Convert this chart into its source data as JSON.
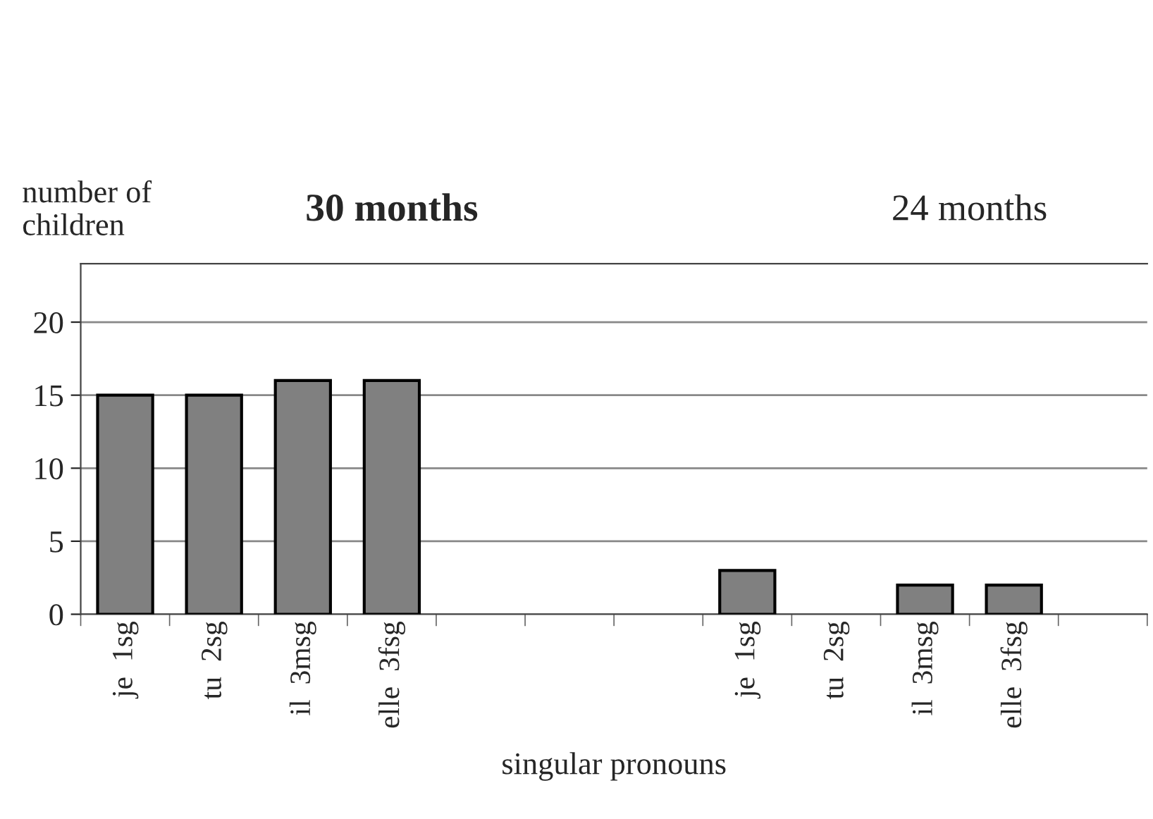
{
  "chart_data": {
    "type": "bar",
    "xlabel": "singular pronouns",
    "ylabel": "number of children",
    "annotations": [
      "30 months",
      "24 months"
    ],
    "categories": [
      "je  1sg",
      "tu  2sg",
      "il  3msg",
      "elle  3fsg",
      null,
      null,
      null,
      "je  1sg",
      "tu  2sg",
      "il  3msg",
      "elle  3fsg",
      null
    ],
    "values": [
      15,
      15,
      16,
      16,
      null,
      null,
      null,
      3,
      0,
      2,
      2,
      null
    ],
    "color": "#808080",
    "ylim": [
      0,
      24
    ],
    "yticks": [
      0,
      5,
      10,
      15,
      20
    ],
    "grid": "y"
  }
}
